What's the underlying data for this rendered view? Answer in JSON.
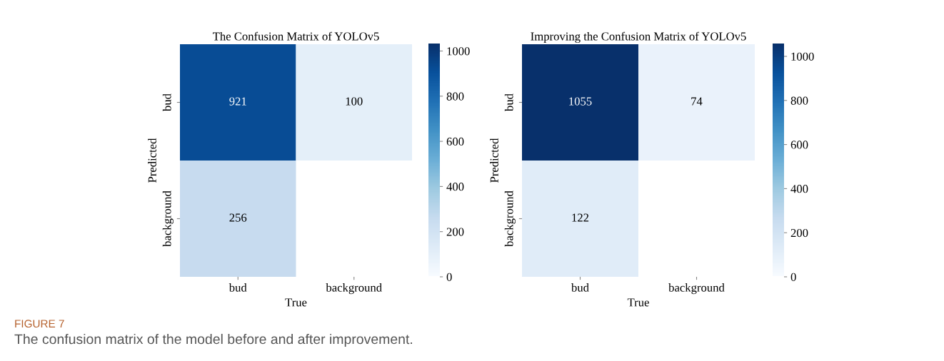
{
  "chart_data": [
    {
      "type": "heatmap",
      "title": "The Confusion Matrix of YOLOv5",
      "xlabel": "True",
      "ylabel": "Predicted",
      "categories": [
        "bud",
        "background"
      ],
      "y_categories": [
        "bud",
        "background"
      ],
      "cells": [
        [
          921,
          100
        ],
        [
          256,
          null
        ]
      ],
      "clim": [
        0,
        1030
      ],
      "cticks": [
        0,
        200,
        400,
        600,
        800,
        1000
      ],
      "data_labels": true,
      "annotations": [
        "FIGURE 7",
        "The confusion matrix of the model before and after improvement."
      ]
    },
    {
      "type": "heatmap",
      "title": "Improving the Confusion Matrix of YOLOv5",
      "xlabel": "True",
      "ylabel": "Predicted",
      "categories": [
        "bud",
        "background"
      ],
      "y_categories": [
        "bud",
        "background"
      ],
      "cells": [
        [
          1055,
          74
        ],
        [
          122,
          null
        ]
      ],
      "clim": [
        0,
        1055
      ],
      "cticks": [
        0,
        200,
        400,
        600,
        800,
        1000
      ],
      "data_labels": true
    }
  ]
}
